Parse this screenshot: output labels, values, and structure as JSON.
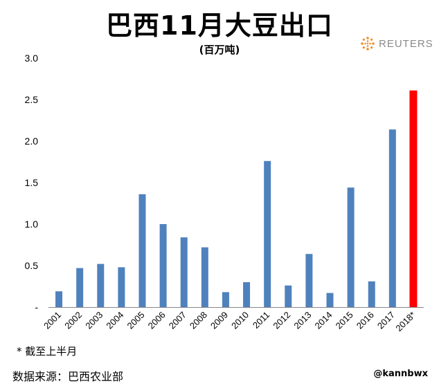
{
  "header": {
    "title": "巴西11月大豆出口",
    "subtitle": "(百万吨)",
    "logo_text": "REUTERS"
  },
  "footer": {
    "note": "* 截至上半月",
    "source": "数据来源：巴西农业部",
    "handle": "@kannbwx"
  },
  "colors": {
    "bar": "#4f81bd",
    "highlight": "#ff0000",
    "axis": "#888888"
  },
  "chart_data": {
    "type": "bar",
    "title": "巴西11月大豆出口",
    "subtitle": "(百万吨)",
    "xlabel": "",
    "ylabel": "",
    "categories": [
      "2001",
      "2002",
      "2003",
      "2004",
      "2005",
      "2006",
      "2007",
      "2008",
      "2009",
      "2010",
      "2011",
      "2012",
      "2013",
      "2014",
      "2015",
      "2016",
      "2017",
      "2018*"
    ],
    "values": [
      0.19,
      0.47,
      0.52,
      0.48,
      1.36,
      1.0,
      0.84,
      0.72,
      0.18,
      0.3,
      1.76,
      0.26,
      0.64,
      0.17,
      1.44,
      0.31,
      2.14,
      2.61
    ],
    "highlight_index": 17,
    "ylim": [
      0,
      3.0
    ],
    "yticks": [
      0,
      0.5,
      1.0,
      1.5,
      2.0,
      2.5,
      3.0
    ],
    "ytick_labels": [
      "-",
      "0.5",
      "1.0",
      "1.5",
      "2.0",
      "2.5",
      "3.0"
    ],
    "grid": false,
    "legend": "none"
  }
}
